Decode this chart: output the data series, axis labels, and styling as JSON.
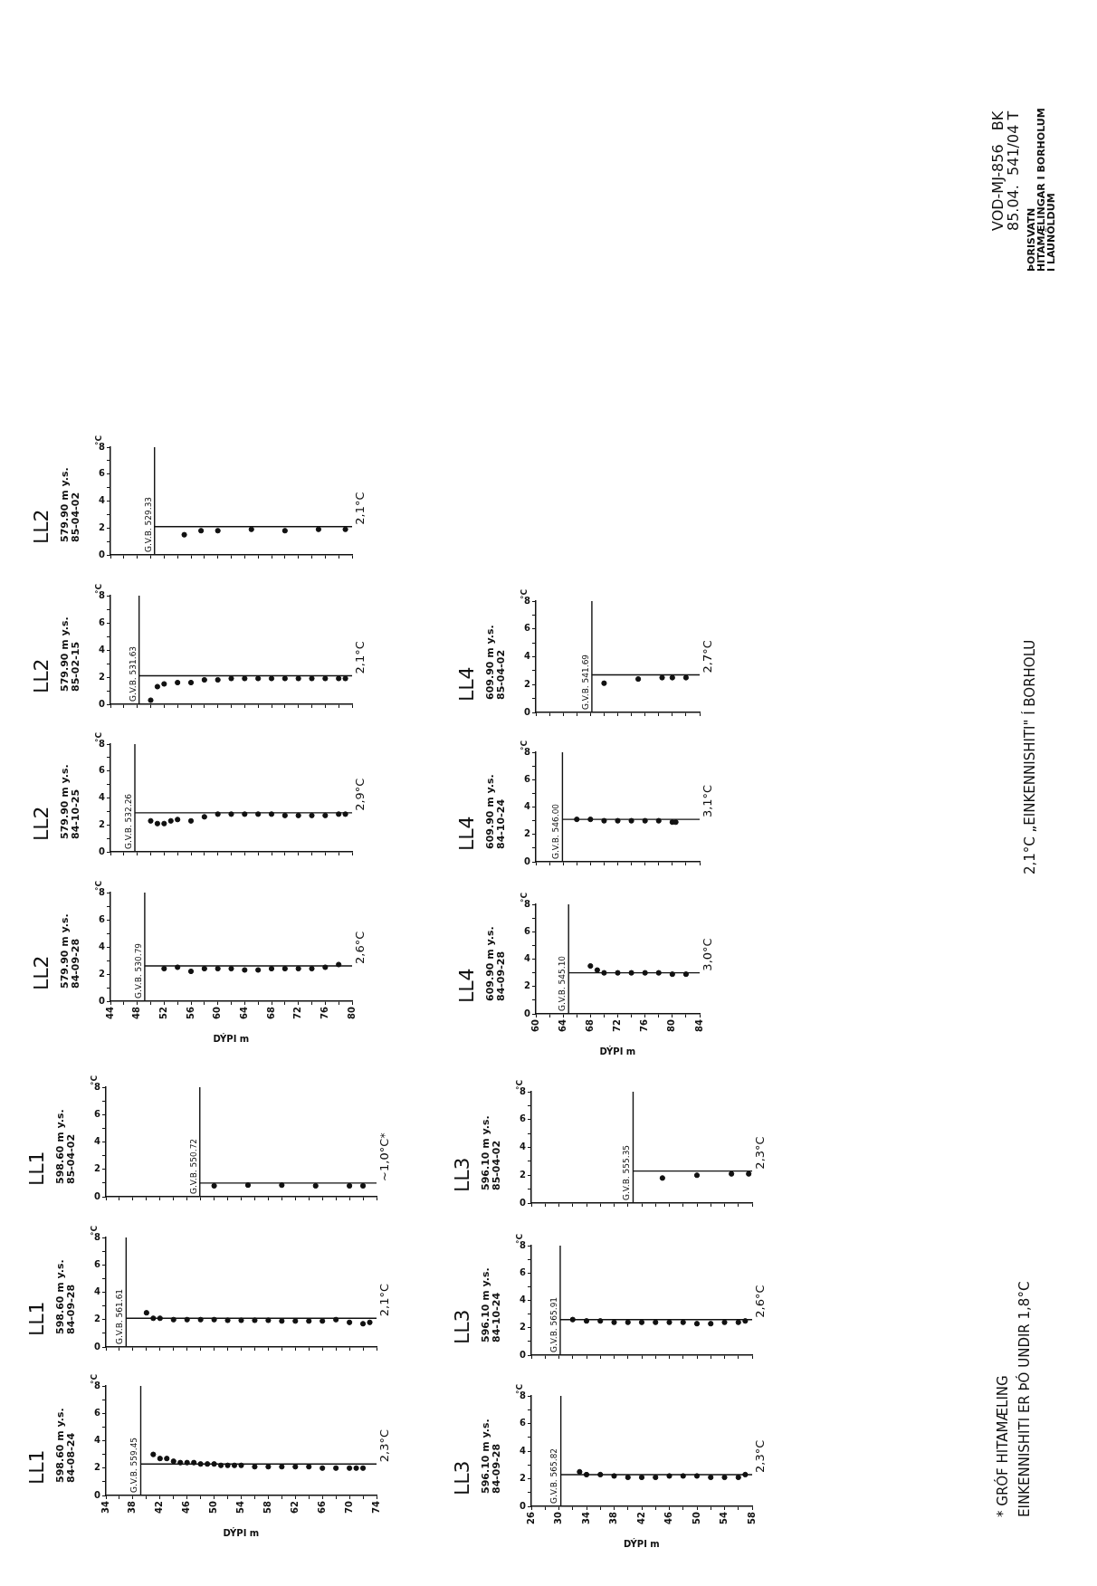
{
  "chart_data": [
    {
      "type": "scatter",
      "title": "LL1",
      "subtitle": "598.60 m y.s.\n84-08-24",
      "xlabel": "DÝPI m",
      "ylabel": "°C",
      "marker": "circle",
      "color": "#111111",
      "x": [
        41,
        42,
        43,
        44,
        45,
        46,
        47,
        48,
        49,
        50,
        51,
        52,
        53,
        54,
        56,
        58,
        60,
        62,
        64,
        66,
        68,
        70,
        71,
        72
      ],
      "values": [
        3.0,
        2.7,
        2.7,
        2.5,
        2.4,
        2.4,
        2.4,
        2.3,
        2.3,
        2.3,
        2.2,
        2.2,
        2.2,
        2.2,
        2.1,
        2.1,
        2.1,
        2.1,
        2.1,
        2.0,
        2.0,
        2.0,
        2.0,
        2.0
      ],
      "xlim": [
        34,
        74
      ],
      "xticks": [
        34,
        {
          "value": 36,
          "label": null
        },
        38,
        {
          "value": 40,
          "label": null
        },
        42,
        {
          "value": 44,
          "label": null
        },
        46,
        {
          "value": 48,
          "label": null
        },
        50,
        {
          "value": 52,
          "label": null
        },
        54,
        {
          "value": 56,
          "label": null
        },
        58,
        {
          "value": 60,
          "label": null
        },
        62,
        {
          "value": 64,
          "label": null
        },
        66,
        {
          "value": 68,
          "label": null
        },
        70,
        {
          "value": 72,
          "label": null
        },
        74
      ],
      "ylim": [
        0,
        8
      ],
      "yticks": [
        0,
        {
          "value": 1,
          "label": null
        },
        2,
        {
          "value": 3,
          "label": null
        },
        4,
        {
          "value": 5,
          "label": null
        },
        6,
        {
          "value": 7,
          "label": null
        },
        8
      ],
      "ref_lines": [
        {
          "axis": "x",
          "value": 39.15,
          "label": "G.V.B. 559.45"
        },
        {
          "axis": "y",
          "value": 2.3,
          "label": "2,3°C"
        }
      ]
    },
    {
      "type": "scatter",
      "title": "LL1",
      "subtitle": "598.60 m y.s.\n84-09-28",
      "ylabel": "°C",
      "marker": "circle",
      "color": "#111111",
      "tick_labels": "y",
      "x": [
        40,
        41,
        42,
        44,
        46,
        48,
        50,
        52,
        54,
        56,
        58,
        60,
        62,
        64,
        66,
        68,
        70,
        72,
        73
      ],
      "values": [
        2.5,
        2.1,
        2.1,
        2.0,
        2.0,
        2.0,
        2.0,
        1.95,
        1.95,
        1.95,
        1.95,
        1.9,
        1.9,
        1.9,
        1.9,
        2.0,
        1.8,
        1.7,
        1.8
      ],
      "xlim": [
        34,
        74
      ],
      "xticks": [
        34,
        {
          "value": 36,
          "label": null
        },
        38,
        {
          "value": 40,
          "label": null
        },
        42,
        {
          "value": 44,
          "label": null
        },
        46,
        {
          "value": 48,
          "label": null
        },
        50,
        {
          "value": 52,
          "label": null
        },
        54,
        {
          "value": 56,
          "label": null
        },
        58,
        {
          "value": 60,
          "label": null
        },
        62,
        {
          "value": 64,
          "label": null
        },
        66,
        {
          "value": 68,
          "label": null
        },
        70,
        {
          "value": 72,
          "label": null
        },
        74
      ],
      "ylim": [
        0,
        8
      ],
      "yticks": [
        0,
        {
          "value": 1,
          "label": null
        },
        2,
        {
          "value": 3,
          "label": null
        },
        4,
        {
          "value": 5,
          "label": null
        },
        6,
        {
          "value": 7,
          "label": null
        },
        8
      ],
      "ref_lines": [
        {
          "axis": "x",
          "value": 36.99,
          "label": "G.V.B. 561.61"
        },
        {
          "axis": "y",
          "value": 2.1,
          "label": "2,1°C"
        }
      ]
    },
    {
      "type": "scatter",
      "title": "LL1",
      "subtitle": "598.60 m y.s.\n85-04-02",
      "ylabel": "°C",
      "marker": "circle",
      "color": "#111111",
      "tick_labels": "y",
      "x": [
        50,
        55,
        60,
        65,
        70,
        72
      ],
      "values": [
        0.8,
        0.85,
        0.85,
        0.8,
        0.8,
        0.8
      ],
      "xlim": [
        34,
        74
      ],
      "xticks": [
        34,
        {
          "value": 36,
          "label": null
        },
        38,
        {
          "value": 40,
          "label": null
        },
        42,
        {
          "value": 44,
          "label": null
        },
        46,
        {
          "value": 48,
          "label": null
        },
        50,
        {
          "value": 52,
          "label": null
        },
        54,
        {
          "value": 56,
          "label": null
        },
        58,
        {
          "value": 60,
          "label": null
        },
        62,
        {
          "value": 64,
          "label": null
        },
        66,
        {
          "value": 68,
          "label": null
        },
        70,
        {
          "value": 72,
          "label": null
        },
        74
      ],
      "ylim": [
        0,
        8
      ],
      "yticks": [
        0,
        {
          "value": 1,
          "label": null
        },
        2,
        {
          "value": 3,
          "label": null
        },
        4,
        {
          "value": 5,
          "label": null
        },
        6,
        {
          "value": 7,
          "label": null
        },
        8
      ],
      "ref_lines": [
        {
          "axis": "x",
          "value": 47.88,
          "label": "G.V.B. 550.72"
        },
        {
          "axis": "y",
          "value": 1.0,
          "label": "~1,0°C*"
        }
      ]
    },
    {
      "type": "scatter",
      "title": "LL2",
      "subtitle": "579.90 m y.s.\n84-09-28",
      "xlabel": "DÝPI m",
      "ylabel": "°C",
      "marker": "circle",
      "color": "#111111",
      "x": [
        52,
        54,
        56,
        58,
        60,
        62,
        64,
        66,
        68,
        70,
        72,
        74,
        76,
        78
      ],
      "values": [
        2.4,
        2.5,
        2.2,
        2.4,
        2.4,
        2.4,
        2.3,
        2.3,
        2.4,
        2.4,
        2.4,
        2.4,
        2.5,
        2.7
      ],
      "xlim": [
        44,
        80
      ],
      "xticks": [
        44,
        {
          "value": 46,
          "label": null
        },
        48,
        {
          "value": 50,
          "label": null
        },
        52,
        {
          "value": 54,
          "label": null
        },
        56,
        {
          "value": 58,
          "label": null
        },
        60,
        {
          "value": 62,
          "label": null
        },
        64,
        {
          "value": 66,
          "label": null
        },
        68,
        {
          "value": 70,
          "label": null
        },
        72,
        {
          "value": 74,
          "label": null
        },
        76,
        {
          "value": 78,
          "label": null
        },
        80
      ],
      "ylim": [
        0,
        8
      ],
      "yticks": [
        0,
        {
          "value": 1,
          "label": null
        },
        2,
        {
          "value": 3,
          "label": null
        },
        4,
        {
          "value": 5,
          "label": null
        },
        6,
        {
          "value": 7,
          "label": null
        },
        8
      ],
      "ref_lines": [
        {
          "axis": "x",
          "value": 49.11,
          "label": "G.V.B. 530.79"
        },
        {
          "axis": "y",
          "value": 2.6,
          "label": "2,6°C"
        }
      ]
    },
    {
      "type": "scatter",
      "title": "LL2",
      "subtitle": "579.90 m y.s.\n84-10-25",
      "ylabel": "°C",
      "marker": "circle",
      "color": "#111111",
      "tick_labels": "y",
      "x": [
        50,
        51,
        52,
        53,
        54,
        56,
        58,
        60,
        62,
        64,
        66,
        68,
        70,
        72,
        74,
        76,
        78,
        79
      ],
      "values": [
        2.3,
        2.1,
        2.1,
        2.3,
        2.4,
        2.3,
        2.6,
        2.8,
        2.8,
        2.8,
        2.8,
        2.8,
        2.7,
        2.7,
        2.7,
        2.7,
        2.8,
        2.8
      ],
      "xlim": [
        44,
        80
      ],
      "xticks": [
        44,
        {
          "value": 46,
          "label": null
        },
        48,
        {
          "value": 50,
          "label": null
        },
        52,
        {
          "value": 54,
          "label": null
        },
        56,
        {
          "value": 58,
          "label": null
        },
        60,
        {
          "value": 62,
          "label": null
        },
        64,
        {
          "value": 66,
          "label": null
        },
        68,
        {
          "value": 70,
          "label": null
        },
        72,
        {
          "value": 74,
          "label": null
        },
        76,
        {
          "value": 78,
          "label": null
        },
        80
      ],
      "ylim": [
        0,
        8
      ],
      "yticks": [
        0,
        {
          "value": 1,
          "label": null
        },
        2,
        {
          "value": 3,
          "label": null
        },
        4,
        {
          "value": 5,
          "label": null
        },
        6,
        {
          "value": 7,
          "label": null
        },
        8
      ],
      "ref_lines": [
        {
          "axis": "x",
          "value": 47.64,
          "label": "G.V.B. 532.26"
        },
        {
          "axis": "y",
          "value": 2.9,
          "label": "2,9°C"
        }
      ]
    },
    {
      "type": "scatter",
      "title": "LL2",
      "subtitle": "579.90 m y.s.\n85-02-15",
      "ylabel": "°C",
      "marker": "circle",
      "color": "#111111",
      "tick_labels": "y",
      "x": [
        50,
        51,
        52,
        54,
        56,
        58,
        60,
        62,
        64,
        66,
        68,
        70,
        72,
        74,
        76,
        78,
        79
      ],
      "values": [
        0.3,
        1.3,
        1.5,
        1.6,
        1.6,
        1.8,
        1.8,
        1.9,
        1.9,
        1.9,
        1.9,
        1.9,
        1.9,
        1.9,
        1.9,
        1.9,
        1.9
      ],
      "xlim": [
        44,
        80
      ],
      "xticks": [
        44,
        {
          "value": 46,
          "label": null
        },
        48,
        {
          "value": 50,
          "label": null
        },
        52,
        {
          "value": 54,
          "label": null
        },
        56,
        {
          "value": 58,
          "label": null
        },
        60,
        {
          "value": 62,
          "label": null
        },
        64,
        {
          "value": 66,
          "label": null
        },
        68,
        {
          "value": 70,
          "label": null
        },
        72,
        {
          "value": 74,
          "label": null
        },
        76,
        {
          "value": 78,
          "label": null
        },
        80
      ],
      "ylim": [
        0,
        8
      ],
      "yticks": [
        0,
        {
          "value": 1,
          "label": null
        },
        2,
        {
          "value": 3,
          "label": null
        },
        4,
        {
          "value": 5,
          "label": null
        },
        6,
        {
          "value": 7,
          "label": null
        },
        8
      ],
      "ref_lines": [
        {
          "axis": "x",
          "value": 48.27,
          "label": "G.V.B. 531.63"
        },
        {
          "axis": "y",
          "value": 2.1,
          "label": "2,1°C"
        }
      ]
    },
    {
      "type": "scatter",
      "title": "LL2",
      "subtitle": "579.90 m y.s.\n85-04-02",
      "ylabel": "°C",
      "marker": "circle",
      "color": "#111111",
      "tick_labels": "y",
      "x": [
        55,
        57.5,
        60,
        65,
        70,
        75,
        79
      ],
      "values": [
        1.5,
        1.8,
        1.8,
        1.9,
        1.8,
        1.9,
        1.9
      ],
      "xlim": [
        44,
        80
      ],
      "xticks": [
        44,
        {
          "value": 46,
          "label": null
        },
        48,
        {
          "value": 50,
          "label": null
        },
        52,
        {
          "value": 54,
          "label": null
        },
        56,
        {
          "value": 58,
          "label": null
        },
        60,
        {
          "value": 62,
          "label": null
        },
        64,
        {
          "value": 66,
          "label": null
        },
        68,
        {
          "value": 70,
          "label": null
        },
        72,
        {
          "value": 74,
          "label": null
        },
        76,
        {
          "value": 78,
          "label": null
        },
        80
      ],
      "ylim": [
        0,
        8
      ],
      "yticks": [
        0,
        {
          "value": 1,
          "label": null
        },
        2,
        {
          "value": 3,
          "label": null
        },
        4,
        {
          "value": 5,
          "label": null
        },
        6,
        {
          "value": 7,
          "label": null
        },
        8
      ],
      "ref_lines": [
        {
          "axis": "x",
          "value": 50.57,
          "label": "G.V.B. 529.33"
        },
        {
          "axis": "y",
          "value": 2.1,
          "label": "2,1°C"
        }
      ]
    },
    {
      "type": "scatter",
      "title": "LL3",
      "subtitle": "596.10 m y.s.\n84-09-28",
      "xlabel": "DÝPI m",
      "ylabel": "°C",
      "marker": "circle",
      "color": "#111111",
      "x": [
        33,
        34,
        36,
        38,
        40,
        42,
        44,
        46,
        48,
        50,
        52,
        54,
        56,
        57
      ],
      "values": [
        2.5,
        2.3,
        2.3,
        2.2,
        2.1,
        2.1,
        2.1,
        2.2,
        2.2,
        2.2,
        2.1,
        2.1,
        2.1,
        2.3
      ],
      "xlim": [
        26,
        58
      ],
      "xticks": [
        26,
        {
          "value": 28,
          "label": null
        },
        30,
        {
          "value": 32,
          "label": null
        },
        34,
        {
          "value": 36,
          "label": null
        },
        38,
        {
          "value": 40,
          "label": null
        },
        42,
        {
          "value": 44,
          "label": null
        },
        46,
        {
          "value": 48,
          "label": null
        },
        50,
        {
          "value": 52,
          "label": null
        },
        54,
        {
          "value": 56,
          "label": null
        },
        58
      ],
      "ylim": [
        0,
        8
      ],
      "yticks": [
        0,
        {
          "value": 1,
          "label": null
        },
        2,
        {
          "value": 3,
          "label": null
        },
        4,
        {
          "value": 5,
          "label": null
        },
        6,
        {
          "value": 7,
          "label": null
        },
        8
      ],
      "ref_lines": [
        {
          "axis": "x",
          "value": 30.28,
          "label": "G.V.B. 565.82"
        },
        {
          "axis": "y",
          "value": 2.3,
          "label": "2,3°C"
        }
      ]
    },
    {
      "type": "scatter",
      "title": "LL3",
      "subtitle": "596.10 m y.s.\n84-10-24",
      "ylabel": "°C",
      "marker": "circle",
      "color": "#111111",
      "tick_labels": "y",
      "x": [
        32,
        34,
        36,
        38,
        40,
        42,
        44,
        46,
        48,
        50,
        52,
        54,
        56,
        57
      ],
      "values": [
        2.6,
        2.5,
        2.5,
        2.4,
        2.4,
        2.4,
        2.4,
        2.4,
        2.4,
        2.3,
        2.3,
        2.4,
        2.4,
        2.5
      ],
      "xlim": [
        26,
        58
      ],
      "xticks": [
        26,
        {
          "value": 28,
          "label": null
        },
        30,
        {
          "value": 32,
          "label": null
        },
        34,
        {
          "value": 36,
          "label": null
        },
        38,
        {
          "value": 40,
          "label": null
        },
        42,
        {
          "value": 44,
          "label": null
        },
        46,
        {
          "value": 48,
          "label": null
        },
        50,
        {
          "value": 52,
          "label": null
        },
        54,
        {
          "value": 56,
          "label": null
        },
        58
      ],
      "ylim": [
        0,
        8
      ],
      "yticks": [
        0,
        {
          "value": 1,
          "label": null
        },
        2,
        {
          "value": 3,
          "label": null
        },
        4,
        {
          "value": 5,
          "label": null
        },
        6,
        {
          "value": 7,
          "label": null
        },
        8
      ],
      "ref_lines": [
        {
          "axis": "x",
          "value": 30.19,
          "label": "G.V.B. 565.91"
        },
        {
          "axis": "y",
          "value": 2.6,
          "label": "2,6°C"
        }
      ]
    },
    {
      "type": "scatter",
      "title": "LL3",
      "subtitle": "596.10 m y.s.\n85-04-02",
      "ylabel": "°C",
      "marker": "circle",
      "color": "#111111",
      "tick_labels": "y",
      "x": [
        45,
        50,
        55,
        57.5
      ],
      "values": [
        1.8,
        2.0,
        2.1,
        2.1
      ],
      "xlim": [
        26,
        58
      ],
      "xticks": [
        26,
        {
          "value": 28,
          "label": null
        },
        30,
        {
          "value": 32,
          "label": null
        },
        34,
        {
          "value": 36,
          "label": null
        },
        38,
        {
          "value": 40,
          "label": null
        },
        42,
        {
          "value": 44,
          "label": null
        },
        46,
        {
          "value": 48,
          "label": null
        },
        50,
        {
          "value": 52,
          "label": null
        },
        54,
        {
          "value": 56,
          "label": null
        },
        58
      ],
      "ylim": [
        0,
        8
      ],
      "yticks": [
        0,
        {
          "value": 1,
          "label": null
        },
        2,
        {
          "value": 3,
          "label": null
        },
        4,
        {
          "value": 5,
          "label": null
        },
        6,
        {
          "value": 7,
          "label": null
        },
        8
      ],
      "ref_lines": [
        {
          "axis": "x",
          "value": 40.75,
          "label": "G.V.B. 555.35"
        },
        {
          "axis": "y",
          "value": 2.3,
          "label": "2,3°C"
        }
      ]
    },
    {
      "type": "scatter",
      "title": "LL4",
      "subtitle": "609.90 m y.s.\n84-09-28",
      "xlabel": "DÝPI m",
      "ylabel": "°C",
      "marker": "circle",
      "color": "#111111",
      "x": [
        68,
        69,
        70,
        72,
        74,
        76,
        78,
        80,
        82
      ],
      "values": [
        3.5,
        3.2,
        3.0,
        3.0,
        3.0,
        3.0,
        3.0,
        2.9,
        2.9
      ],
      "xlim": [
        60,
        84
      ],
      "xticks": [
        60,
        {
          "value": 62,
          "label": null
        },
        64,
        {
          "value": 66,
          "label": null
        },
        68,
        {
          "value": 70,
          "label": null
        },
        72,
        {
          "value": 74,
          "label": null
        },
        76,
        {
          "value": 78,
          "label": null
        },
        80,
        {
          "value": 82,
          "label": null
        },
        84
      ],
      "ylim": [
        0,
        8
      ],
      "yticks": [
        0,
        {
          "value": 1,
          "label": null
        },
        2,
        {
          "value": 3,
          "label": null
        },
        4,
        {
          "value": 5,
          "label": null
        },
        6,
        {
          "value": 7,
          "label": null
        },
        8
      ],
      "ref_lines": [
        {
          "axis": "x",
          "value": 64.8,
          "label": "G.V.B. 545.10"
        },
        {
          "axis": "y",
          "value": 3.0,
          "label": "3,0°C"
        }
      ]
    },
    {
      "type": "scatter",
      "title": "LL4",
      "subtitle": "609.90 m y.s.\n84-10-24",
      "ylabel": "°C",
      "marker": "circle",
      "color": "#111111",
      "tick_labels": "y",
      "x": [
        66,
        68,
        70,
        72,
        74,
        76,
        78,
        80,
        80.5
      ],
      "values": [
        3.1,
        3.1,
        3.0,
        3.0,
        3.0,
        3.0,
        3.0,
        2.9,
        2.9
      ],
      "xlim": [
        60,
        84
      ],
      "xticks": [
        60,
        {
          "value": 62,
          "label": null
        },
        64,
        {
          "value": 66,
          "label": null
        },
        68,
        {
          "value": 70,
          "label": null
        },
        72,
        {
          "value": 74,
          "label": null
        },
        76,
        {
          "value": 78,
          "label": null
        },
        80,
        {
          "value": 82,
          "label": null
        },
        84
      ],
      "ylim": [
        0,
        8
      ],
      "yticks": [
        0,
        {
          "value": 1,
          "label": null
        },
        2,
        {
          "value": 3,
          "label": null
        },
        4,
        {
          "value": 5,
          "label": null
        },
        6,
        {
          "value": 7,
          "label": null
        },
        8
      ],
      "ref_lines": [
        {
          "axis": "x",
          "value": 63.9,
          "label": "G.V.B. 546.00"
        },
        {
          "axis": "y",
          "value": 3.1,
          "label": "3,1°C"
        }
      ]
    },
    {
      "type": "scatter",
      "title": "LL4",
      "subtitle": "609.90 m y.s.\n85-04-02",
      "ylabel": "°C",
      "marker": "circle",
      "color": "#111111",
      "tick_labels": "y",
      "x": [
        70,
        75,
        78.5,
        80,
        82
      ],
      "values": [
        2.1,
        2.4,
        2.5,
        2.5,
        2.5
      ],
      "xlim": [
        60,
        84
      ],
      "xticks": [
        60,
        {
          "value": 62,
          "label": null
        },
        64,
        {
          "value": 66,
          "label": null
        },
        68,
        {
          "value": 70,
          "label": null
        },
        72,
        {
          "value": 74,
          "label": null
        },
        76,
        {
          "value": 78,
          "label": null
        },
        80,
        {
          "value": 82,
          "label": null
        },
        84
      ],
      "ylim": [
        0,
        8
      ],
      "yticks": [
        0,
        {
          "value": 1,
          "label": null
        },
        2,
        {
          "value": 3,
          "label": null
        },
        4,
        {
          "value": 5,
          "label": null
        },
        6,
        {
          "value": 7,
          "label": null
        },
        8
      ],
      "ref_lines": [
        {
          "axis": "x",
          "value": 68.21,
          "label": "G.V.B. 541.69"
        },
        {
          "axis": "y",
          "value": 2.7,
          "label": "2,7°C"
        }
      ]
    },
    {
      "type": "other",
      "annotations": [
        "VOD-MJ-856   BK",
        "85.04.  541/04 T",
        "ÞORISVATN",
        "HITAMÆLINGAR I BORHOLUM",
        "I LAUNÖLDUM",
        "2,1°C „EINKENNISHITI\" Í BORHOLU",
        "* GRÓF HITAMÆLING",
        "EINKENNISHITI ER ÞÓ UNDIR 1,8°C"
      ]
    }
  ]
}
